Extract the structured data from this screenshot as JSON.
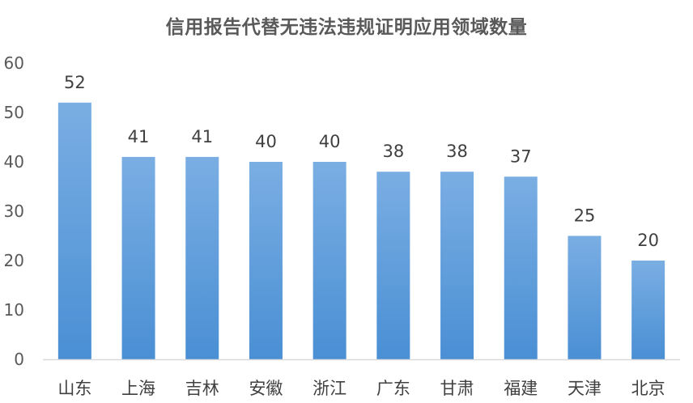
{
  "chart_data": {
    "type": "bar",
    "title": "信用报告代替无违法违规证明应用领域数量",
    "xlabel": "",
    "ylabel": "",
    "categories": [
      "山东",
      "上海",
      "吉林",
      "安徽",
      "浙江",
      "广东",
      "甘肃",
      "福建",
      "天津",
      "北京"
    ],
    "values": [
      52,
      41,
      41,
      40,
      40,
      38,
      38,
      37,
      25,
      20
    ],
    "ylim": [
      0,
      60
    ],
    "yticks": [
      0,
      10,
      20,
      30,
      40,
      50,
      60
    ],
    "grid": false,
    "legend": "none",
    "data_labels": true,
    "bar_color_top": "#7aaee3",
    "bar_color_bottom": "#4a8fd4",
    "axis_color": "#d9d9d9"
  }
}
